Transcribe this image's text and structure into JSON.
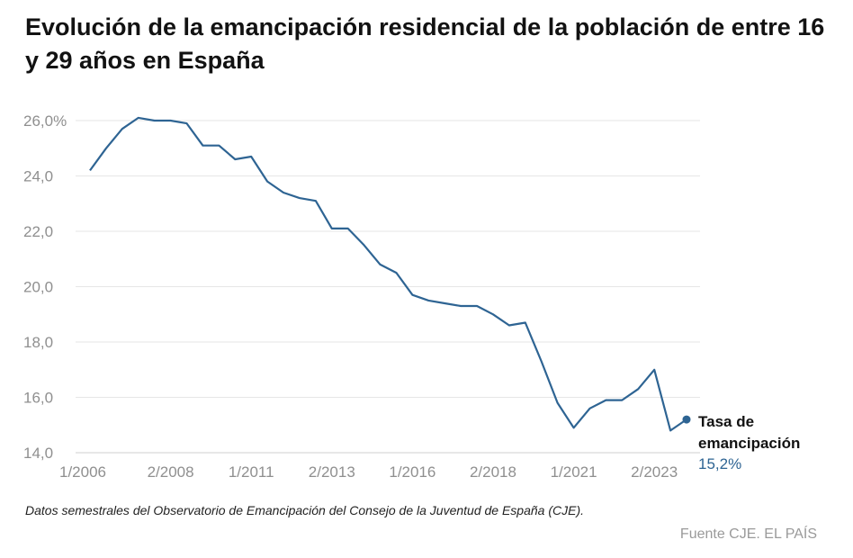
{
  "header": {
    "title": "Evolución de la emancipación residencial de la población de entre 16 y 29 años en España"
  },
  "chart_data": {
    "type": "line",
    "title": "Evolución de la emancipación residencial de la población de entre 16 y 29 años en España",
    "xlabel": "",
    "ylabel": "",
    "ylim": [
      14,
      26
    ],
    "y_ticks": [
      {
        "value": 26,
        "label": "26,0%"
      },
      {
        "value": 24,
        "label": "24,0"
      },
      {
        "value": 22,
        "label": "22,0"
      },
      {
        "value": 20,
        "label": "20,0"
      },
      {
        "value": 18,
        "label": "18,0"
      },
      {
        "value": 16,
        "label": "16,0"
      },
      {
        "value": 14,
        "label": "14,0"
      }
    ],
    "x_ticks": [
      {
        "index": 0,
        "label": "1/2006"
      },
      {
        "index": 5,
        "label": "2/2008"
      },
      {
        "index": 10,
        "label": "1/2011"
      },
      {
        "index": 15,
        "label": "2/2013"
      },
      {
        "index": 20,
        "label": "1/2016"
      },
      {
        "index": 25,
        "label": "2/2018"
      },
      {
        "index": 30,
        "label": "1/2021"
      },
      {
        "index": 35,
        "label": "2/2023"
      }
    ],
    "grid": true,
    "series": [
      {
        "name": "Tasa de emancipación",
        "color": "#2e6493",
        "values": [
          24.2,
          25.0,
          25.7,
          26.1,
          26.0,
          26.0,
          25.9,
          25.1,
          25.1,
          24.6,
          24.7,
          23.8,
          23.4,
          23.2,
          23.1,
          22.1,
          22.1,
          21.5,
          20.8,
          20.5,
          19.7,
          19.5,
          19.4,
          19.3,
          19.3,
          19.0,
          18.6,
          18.7,
          17.3,
          15.8,
          14.9,
          15.6,
          15.9,
          15.9,
          16.3,
          17.0,
          14.8,
          15.2
        ]
      }
    ],
    "end_label": {
      "name_line1": "Tasa de",
      "name_line2": "emancipación",
      "value": "15,2%"
    }
  },
  "footer": {
    "note": "Datos semestrales del Observatorio de Emancipación del Consejo de la Juventud de España (CJE).",
    "source": "Fuente CJE. EL PAÍS"
  }
}
